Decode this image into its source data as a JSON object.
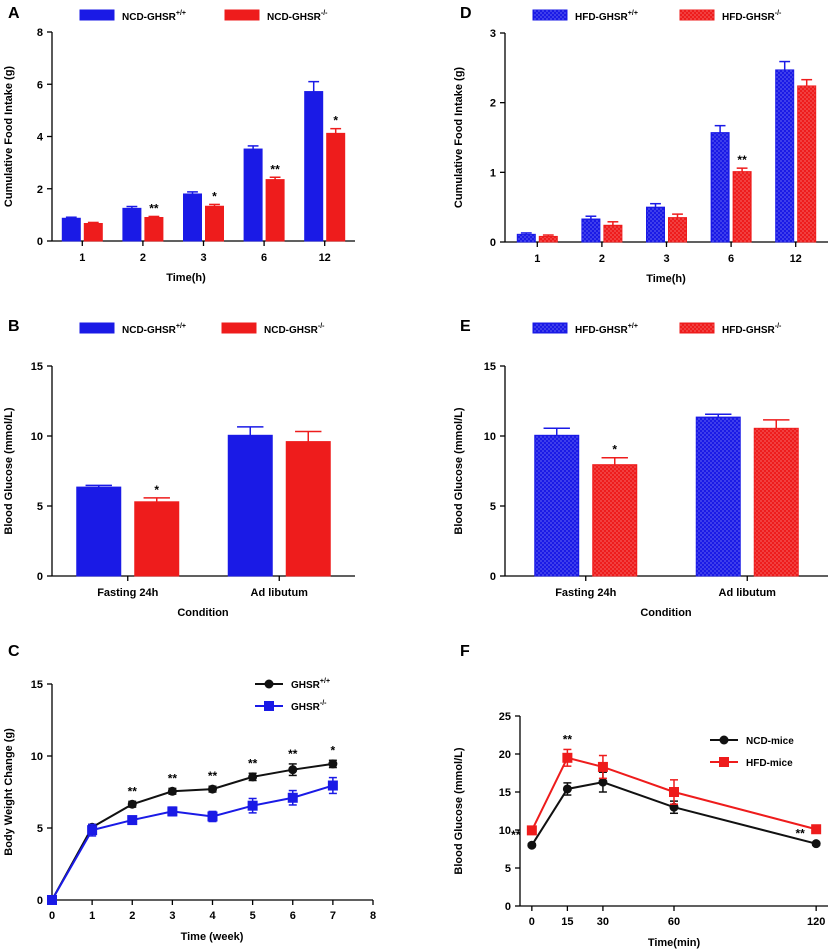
{
  "figure": {
    "colors": {
      "wt": "#1a1ae6",
      "ko": "#ee1c1c",
      "black": "#111111",
      "ncd": "#111111",
      "hfd": "#ee1c1c"
    }
  },
  "chart_data": [
    {
      "panel": "A",
      "type": "bar",
      "categories": [
        "1",
        "2",
        "3",
        "6",
        "12"
      ],
      "xlabel": "Time(h)",
      "ylabel": "Cumulative Food Intake (g)",
      "ylim": [
        0,
        8
      ],
      "yticks": [
        0,
        2,
        4,
        6,
        8
      ],
      "legend_position": "top",
      "pattern": "solid",
      "series": [
        {
          "name": "NCD-GHSR",
          "sup": "+/+",
          "color": "#1a1ae6",
          "values": [
            0.87,
            1.25,
            1.8,
            3.52,
            5.72
          ],
          "errors": [
            0.04,
            0.07,
            0.08,
            0.12,
            0.38
          ]
        },
        {
          "name": "NCD-GHSR",
          "sup": "-/-",
          "color": "#ee1c1c",
          "values": [
            0.67,
            0.9,
            1.33,
            2.35,
            4.12
          ],
          "errors": [
            0.04,
            0.04,
            0.07,
            0.09,
            0.18
          ]
        }
      ],
      "significance": [
        "",
        "**",
        "*",
        "**",
        "*"
      ]
    },
    {
      "panel": "D",
      "type": "bar",
      "categories": [
        "1",
        "2",
        "3",
        "6",
        "12"
      ],
      "xlabel": "Time(h)",
      "ylabel": "Cumulative Food Intake (g)",
      "ylim": [
        0,
        3
      ],
      "yticks": [
        0,
        1,
        2,
        3
      ],
      "legend_position": "top",
      "pattern": "dotted",
      "series": [
        {
          "name": "HFD-GHSR",
          "sup": "+/+",
          "color": "#1a1ae6",
          "values": [
            0.11,
            0.33,
            0.5,
            1.57,
            2.47
          ],
          "errors": [
            0.02,
            0.04,
            0.05,
            0.1,
            0.12
          ]
        },
        {
          "name": "HFD-GHSR",
          "sup": "-/-",
          "color": "#ee1c1c",
          "values": [
            0.08,
            0.24,
            0.35,
            1.01,
            2.24
          ],
          "errors": [
            0.02,
            0.05,
            0.05,
            0.05,
            0.09
          ]
        }
      ],
      "significance": [
        "",
        "",
        "",
        "**",
        ""
      ]
    },
    {
      "panel": "B",
      "type": "bar",
      "categories": [
        "Fasting 24h",
        "Ad libutum"
      ],
      "xlabel": "Condition",
      "ylabel": "Blood Glucose (mmol/L)",
      "ylim": [
        0,
        15
      ],
      "yticks": [
        0,
        5,
        10,
        15
      ],
      "legend_position": "top",
      "pattern": "solid",
      "series": [
        {
          "name": "NCD-GHSR",
          "sup": "+/+",
          "color": "#1a1ae6",
          "values": [
            6.35,
            10.05
          ],
          "errors": [
            0.12,
            0.6
          ]
        },
        {
          "name": "NCD-GHSR",
          "sup": "-/-",
          "color": "#ee1c1c",
          "values": [
            5.3,
            9.6
          ],
          "errors": [
            0.28,
            0.72
          ]
        }
      ],
      "significance": [
        "*",
        ""
      ]
    },
    {
      "panel": "E",
      "type": "bar",
      "categories": [
        "Fasting 24h",
        "Ad libutum"
      ],
      "xlabel": "Condition",
      "ylabel": "Blood Glucose (mmol/L)",
      "ylim": [
        0,
        15
      ],
      "yticks": [
        0,
        5,
        10,
        15
      ],
      "legend_position": "top",
      "pattern": "dotted",
      "series": [
        {
          "name": "HFD-GHSR",
          "sup": "+/+",
          "color": "#1a1ae6",
          "values": [
            10.05,
            11.35
          ],
          "errors": [
            0.5,
            0.2
          ]
        },
        {
          "name": "HFD-GHSR",
          "sup": "-/-",
          "color": "#ee1c1c",
          "values": [
            7.95,
            10.55
          ],
          "errors": [
            0.5,
            0.6
          ]
        }
      ],
      "significance": [
        "*",
        ""
      ]
    },
    {
      "panel": "C",
      "type": "line",
      "x": [
        0,
        1,
        2,
        3,
        4,
        5,
        6,
        7
      ],
      "xlabel": "Time (week)",
      "ylabel": "Body Weight Change (g)",
      "xlim": [
        0,
        8
      ],
      "xticks": [
        0,
        1,
        2,
        3,
        4,
        5,
        6,
        7,
        8
      ],
      "ylim": [
        0,
        15
      ],
      "yticks": [
        0,
        5,
        10,
        15
      ],
      "legend_position": "top-right",
      "series": [
        {
          "name": "GHSR",
          "sup": "+/+",
          "color": "#111111",
          "marker": "circle",
          "values": [
            0,
            5.05,
            6.65,
            7.55,
            7.7,
            8.55,
            9.05,
            9.45
          ],
          "errors": [
            0,
            0.2,
            0.2,
            0.2,
            0.2,
            0.25,
            0.4,
            0.25
          ]
        },
        {
          "name": "GHSR",
          "sup": "-/-",
          "color": "#1a1ae6",
          "marker": "square",
          "values": [
            0,
            4.85,
            5.55,
            6.15,
            5.8,
            6.55,
            7.1,
            7.95
          ],
          "errors": [
            0,
            0.4,
            0.25,
            0.3,
            0.35,
            0.5,
            0.5,
            0.55
          ]
        }
      ],
      "significance": [
        "",
        "",
        "**",
        "**",
        "**",
        "**",
        "**",
        "*"
      ]
    },
    {
      "panel": "F",
      "type": "line",
      "x": [
        0,
        15,
        30,
        60,
        120
      ],
      "xlabel": "Time(min)",
      "ylabel": "Blood Glucose (mmol/L)",
      "xlim": [
        -5,
        125
      ],
      "xticks": [
        0,
        15,
        30,
        60,
        120
      ],
      "ylim": [
        0,
        25
      ],
      "yticks": [
        0,
        5,
        10,
        15,
        20,
        25
      ],
      "legend_position": "top-right",
      "series": [
        {
          "name": "NCD-mice",
          "sup": "",
          "color": "#111111",
          "marker": "circle",
          "values": [
            8.0,
            15.4,
            16.3,
            13.0,
            8.2
          ],
          "errors": [
            0.2,
            0.8,
            1.3,
            0.8,
            0.2
          ]
        },
        {
          "name": "HFD-mice",
          "sup": "",
          "color": "#ee1c1c",
          "marker": "square",
          "values": [
            9.95,
            19.5,
            18.3,
            15.0,
            10.1
          ],
          "errors": [
            0.2,
            1.1,
            1.5,
            1.6,
            0.35
          ]
        }
      ],
      "significance": [
        "**",
        "**",
        "",
        "",
        "**"
      ]
    }
  ]
}
